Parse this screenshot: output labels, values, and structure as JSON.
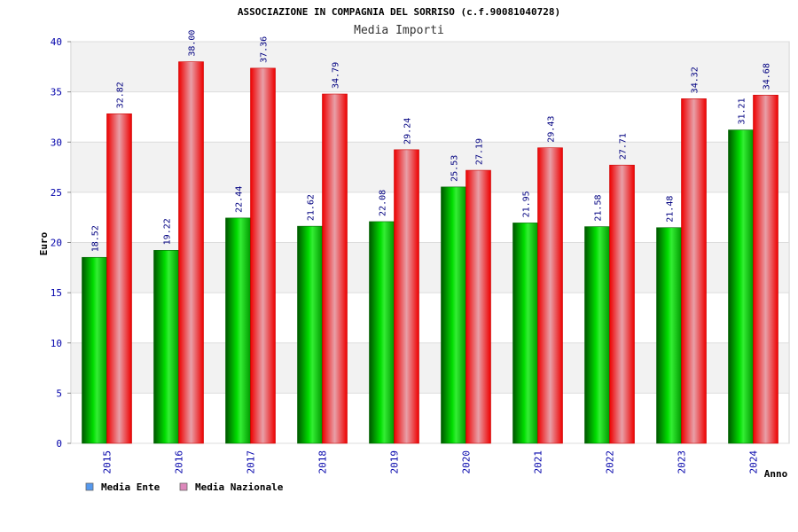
{
  "chart_data": {
    "type": "bar",
    "title": "ASSOCIAZIONE IN COMPAGNIA DEL SORRISO (c.f.90081040728)",
    "subtitle": "Media Importi",
    "xlabel": "Anno",
    "ylabel": "Euro",
    "ylim": [
      0,
      40
    ],
    "yticks": [
      0,
      5,
      10,
      15,
      20,
      25,
      30,
      35,
      40
    ],
    "grid": true,
    "legend_position": "bottom-left",
    "categories": [
      "2015",
      "2016",
      "2017",
      "2018",
      "2019",
      "2020",
      "2021",
      "2022",
      "2023",
      "2024"
    ],
    "series": [
      {
        "name": "Media Ente",
        "color": "#00aa00",
        "legend_color": "#5599ee",
        "values": [
          18.52,
          19.22,
          22.44,
          21.62,
          22.08,
          25.53,
          21.95,
          21.58,
          21.48,
          31.21
        ],
        "labels": [
          "18.52",
          "19.22",
          "22.44",
          "21.62",
          "22.08",
          "25.53",
          "21.95",
          "21.58",
          "21.48",
          "31.21"
        ]
      },
      {
        "name": "Media Nazionale",
        "color": "#ee1111",
        "legend_color": "#dd88bb",
        "values": [
          32.82,
          38.0,
          37.36,
          34.79,
          29.24,
          27.19,
          29.43,
          27.71,
          34.32,
          34.68
        ],
        "labels": [
          "32.82",
          "38.00",
          "37.36",
          "34.79",
          "29.24",
          "27.19",
          "29.43",
          "27.71",
          "34.32",
          "34.68"
        ]
      }
    ]
  }
}
